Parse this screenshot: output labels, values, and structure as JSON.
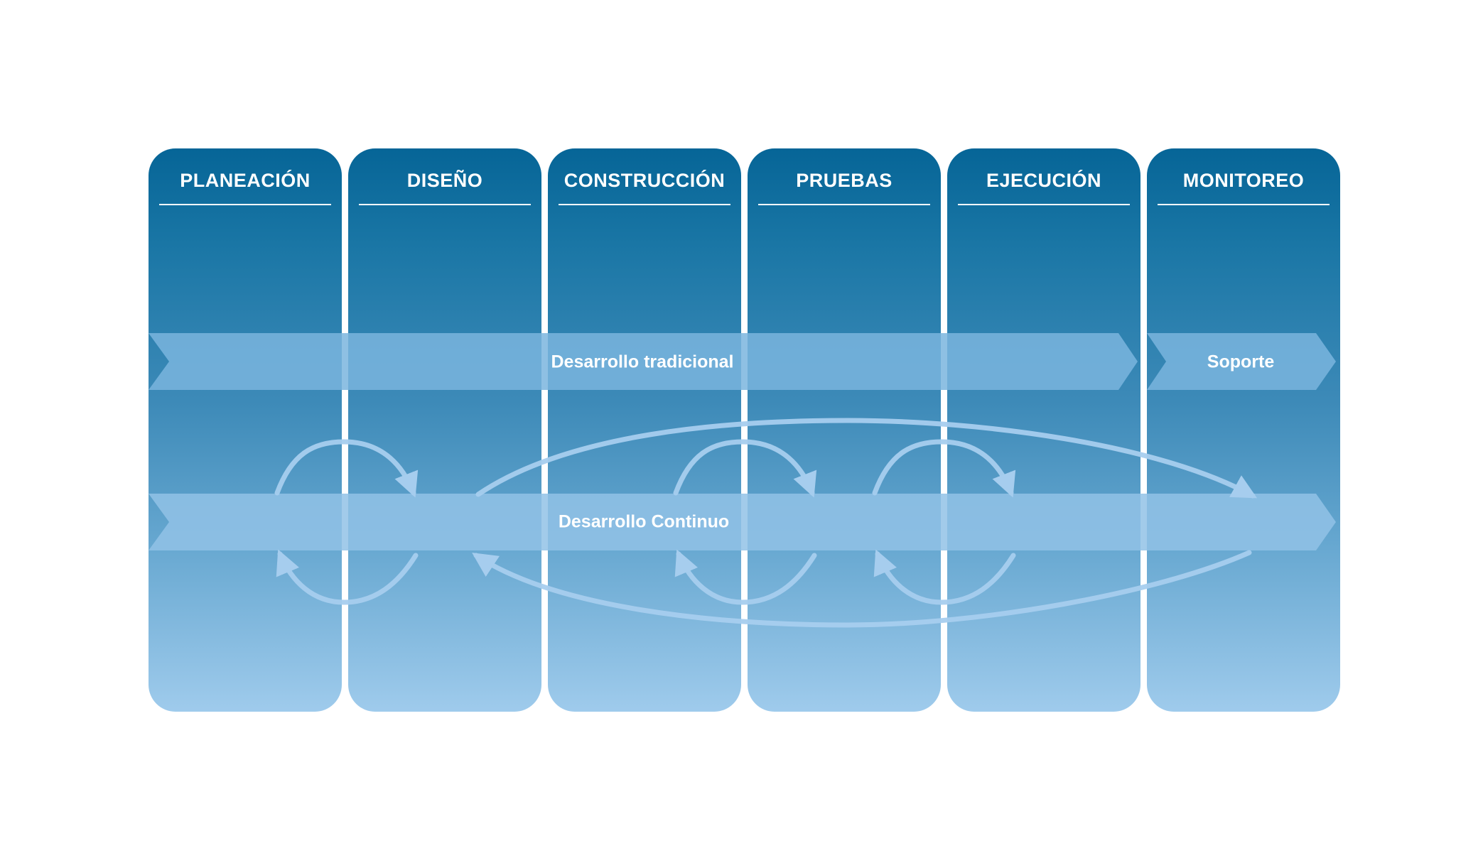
{
  "phases": [
    {
      "label": "PLANEACIÓN"
    },
    {
      "label": "DISEÑO"
    },
    {
      "label": "CONSTRUCCIÓN"
    },
    {
      "label": "PRUEBAS"
    },
    {
      "label": "EJECUCIÓN"
    },
    {
      "label": "MONITOREO"
    }
  ],
  "bands": {
    "traditional": {
      "label": "Desarrollo tradicional"
    },
    "support": {
      "label": "Soporte"
    },
    "continuous": {
      "label": "Desarrollo Continuo"
    }
  },
  "colors": {
    "column_top": "#066597",
    "column_bottom": "#9fcbec",
    "band_traditional": "#7ab5de",
    "band_continuous": "#92c2e6",
    "arrow": "#a6cdee"
  }
}
